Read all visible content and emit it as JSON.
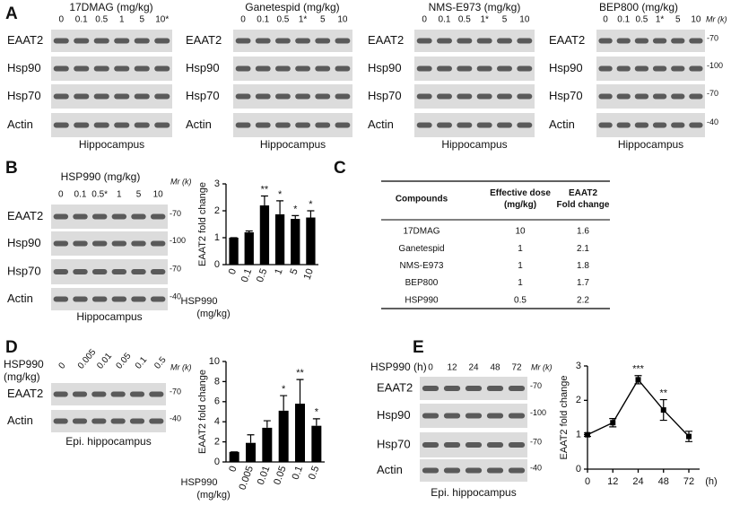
{
  "panel_labels": [
    "A",
    "B",
    "C",
    "D",
    "E"
  ],
  "blots": [
    {
      "title": [
        "17DMAG (mg/kg)"
      ],
      "lanes": [
        "0",
        "0.1",
        "0.5",
        "1",
        "5",
        "10*"
      ],
      "rows": [
        "EAAT2",
        "Hsp90",
        "Hsp70",
        "Actin"
      ],
      "footer": "Hippocampus"
    },
    {
      "title": [
        "Ganetespid (mg/kg)"
      ],
      "lanes": [
        "0",
        "0.1",
        "0.5",
        "1*",
        "5",
        "10"
      ],
      "rows": [
        "EAAT2",
        "Hsp90",
        "Hsp70",
        "Actin"
      ],
      "footer": "Hippocampus"
    },
    {
      "title": [
        "NMS-E973 (mg/kg)"
      ],
      "lanes": [
        "0",
        "0.1",
        "0.5",
        "1*",
        "5",
        "10"
      ],
      "rows": [
        "EAAT2",
        "Hsp90",
        "Hsp70",
        "Actin"
      ],
      "footer": "Hippocampus"
    },
    {
      "title": [
        "BEP800 (mg/kg)"
      ],
      "lanes": [
        "0",
        "0.1",
        "0.5",
        "1*",
        "5",
        "10"
      ],
      "rows": [
        "EAAT2",
        "Hsp90",
        "Hsp70",
        "Actin"
      ],
      "footer": "Hippocampus",
      "mr_label": "Mr (k)",
      "mr": [
        "-70",
        "-100",
        "-70",
        "-40"
      ]
    },
    {
      "title": [
        "HSP990 (mg/kg)"
      ],
      "lanes": [
        "0",
        "0.1",
        "0.5*",
        "1",
        "5",
        "10"
      ],
      "rows": [
        "EAAT2",
        "Hsp90",
        "Hsp70",
        "Actin"
      ],
      "footer": "Hippocampus",
      "mr_label": "Mr (k)",
      "mr": [
        "-70",
        "-100",
        "-70",
        "-40"
      ]
    },
    {
      "title": [
        "HSP990",
        "(mg/kg)"
      ],
      "lanes": [
        "0",
        "0.005",
        "0.01",
        "0.05",
        "0.1",
        "0.5"
      ],
      "rows": [
        "EAAT2",
        "Actin"
      ],
      "footer": "Epi. hippocampus",
      "mr_label": "Mr (k)",
      "mr": [
        "-70",
        "-40"
      ]
    },
    {
      "title": [
        "HSP990 (h)"
      ],
      "lanes": [
        "0",
        "12",
        "24",
        "48",
        "72"
      ],
      "rows": [
        "EAAT2",
        "Hsp90",
        "Hsp70",
        "Actin"
      ],
      "footer": "Epi. hippocampus",
      "mr_label": "Mr (k)",
      "mr": [
        "-70",
        "-100",
        "-70",
        "-40"
      ]
    }
  ],
  "table": {
    "header": [
      [
        "Compounds"
      ],
      [
        "Effective dose",
        "(mg/kg)"
      ],
      [
        "EAAT2",
        "Fold change"
      ]
    ],
    "rows": [
      [
        "17DMAG",
        "10",
        "1.6"
      ],
      [
        "Ganetespid",
        "1",
        "2.1"
      ],
      [
        "NMS-E973",
        "1",
        "1.8"
      ],
      [
        "BEP800",
        "1",
        "1.7"
      ],
      [
        "HSP990",
        "0.5",
        "2.2"
      ]
    ]
  },
  "chart_data": [
    {
      "type": "bar",
      "ylabel": "EAAT2 fold change",
      "xlabel": [
        "HSP990",
        "(mg/kg)"
      ],
      "categories": [
        "0",
        "0.1",
        "0.5",
        "1",
        "5",
        "10"
      ],
      "values": [
        1,
        1.2,
        2.2,
        1.87,
        1.7,
        1.75
      ],
      "errors": [
        0,
        0.05,
        0.35,
        0.5,
        0.12,
        0.25
      ],
      "annotations": [
        null,
        null,
        "**",
        "*",
        "*",
        "*"
      ],
      "color": "#000000",
      "ylim": [
        0,
        3
      ],
      "yticks": [
        0,
        1,
        2,
        3
      ]
    },
    {
      "type": "bar",
      "ylabel": "EAAT2 fold change",
      "xlabel": [
        "HSP990",
        "(mg/kg)"
      ],
      "categories": [
        "0",
        "0.005",
        "0.01",
        "0.05",
        "0.1",
        "0.5"
      ],
      "values": [
        1,
        1.9,
        3.4,
        5.1,
        5.8,
        3.6
      ],
      "errors": [
        0,
        0.8,
        0.7,
        1.5,
        2.4,
        0.7
      ],
      "annotations": [
        null,
        null,
        null,
        "*",
        "**",
        "*"
      ],
      "color": "#000000",
      "ylim": [
        0,
        10
      ],
      "yticks": [
        0,
        2,
        4,
        6,
        8,
        10
      ]
    },
    {
      "type": "line",
      "ylabel": "EAAT2 fold change",
      "xlabel": [
        "(h)"
      ],
      "categories": [
        "0",
        "12",
        "24",
        "48",
        "72"
      ],
      "values": [
        1,
        1.35,
        2.6,
        1.72,
        0.95
      ],
      "errors": [
        0.05,
        0.12,
        0.12,
        0.3,
        0.15
      ],
      "annotations": [
        null,
        null,
        "***",
        "**",
        null
      ],
      "color": "#000000",
      "ylim": [
        0,
        3
      ],
      "yticks": [
        0,
        1,
        2,
        3
      ]
    }
  ]
}
